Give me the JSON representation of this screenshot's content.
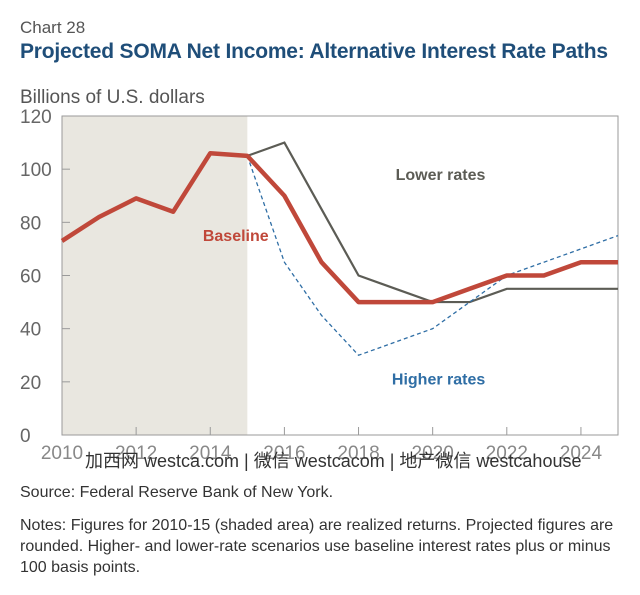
{
  "chart_label": "Chart 28",
  "title": "Projected SOMA Net Income: Alternative Interest Rate Paths",
  "watermark": "加西网 westca.com | 微信 westcacom | 地产微信 westcahouse",
  "source": "Source: Federal Reserve Bank of New York.",
  "notes": "Notes: Figures for 2010-15 (shaded area) are realized returns. Projected figures are rounded. Higher- and lower-rate scenarios use baseline interest rates plus or minus 100 basis points.",
  "colors": {
    "baseline": "#c0483a",
    "lower": "#5c5c55",
    "higher": "#2f6ea5",
    "shade": "#e9e7e0",
    "title": "#1f4e79"
  },
  "chart_data": {
    "type": "line",
    "ylabel": "Billions of U.S. dollars",
    "xlim": [
      2010,
      2025
    ],
    "ylim": [
      0,
      120
    ],
    "yticks": [
      0,
      20,
      40,
      60,
      80,
      100,
      120
    ],
    "xticks": [
      2010,
      2012,
      2014,
      2016,
      2018,
      2020,
      2022,
      2024
    ],
    "shaded_range": [
      2010,
      2015
    ],
    "grid": false,
    "series": [
      {
        "name": "Baseline",
        "style": "solid-thick",
        "x": [
          2010,
          2011,
          2012,
          2013,
          2014,
          2015,
          2016,
          2017,
          2018,
          2019,
          2020,
          2021,
          2022,
          2023,
          2024,
          2025
        ],
        "values": [
          73,
          82,
          89,
          84,
          106,
          105,
          90,
          65,
          50,
          50,
          50,
          55,
          60,
          60,
          65,
          65
        ]
      },
      {
        "name": "Lower rates",
        "style": "solid-thin",
        "x": [
          2015,
          2016,
          2017,
          2018,
          2019,
          2020,
          2021,
          2022,
          2023,
          2024,
          2025
        ],
        "values": [
          105,
          110,
          85,
          60,
          55,
          50,
          50,
          55,
          55,
          55,
          55
        ]
      },
      {
        "name": "Higher rates",
        "style": "dashed",
        "x": [
          2015,
          2016,
          2017,
          2018,
          2019,
          2020,
          2021,
          2022,
          2023,
          2024,
          2025
        ],
        "values": [
          105,
          65,
          45,
          30,
          35,
          40,
          50,
          60,
          65,
          70,
          75
        ]
      }
    ],
    "annotations": [
      {
        "series": "Baseline",
        "text": "Baseline",
        "x": 2013.8,
        "y": 73
      },
      {
        "series": "Lower rates",
        "text": "Lower rates",
        "x": 2019.0,
        "y": 96
      },
      {
        "series": "Higher rates",
        "text": "Higher rates",
        "x": 2018.9,
        "y": 19
      }
    ]
  }
}
